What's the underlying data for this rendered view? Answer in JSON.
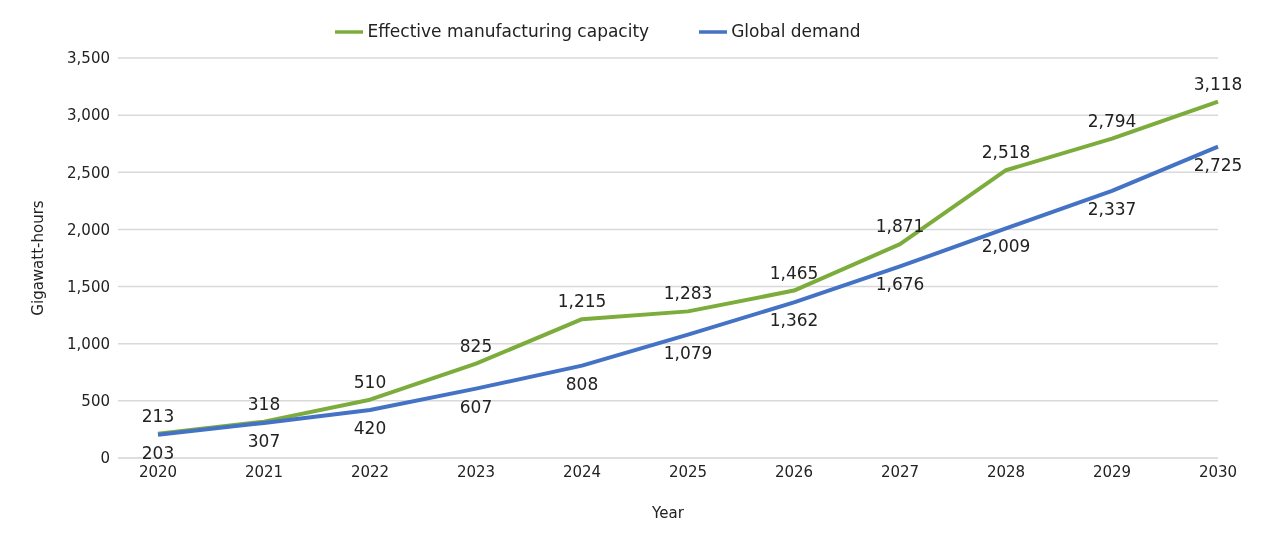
{
  "chart_data": {
    "type": "line",
    "xlabel": "Year",
    "ylabel": "Gigawatt-hours",
    "categories": [
      "2020",
      "2021",
      "2022",
      "2023",
      "2024",
      "2025",
      "2026",
      "2027",
      "2028",
      "2029",
      "2030"
    ],
    "series": [
      {
        "name": "Effective manufacturing capacity",
        "color": "#7cac3c",
        "values": [
          213,
          318,
          510,
          825,
          1215,
          1283,
          1465,
          1871,
          2518,
          2794,
          3118
        ],
        "value_labels": [
          "213",
          "318",
          "510",
          "825",
          "1,215",
          "1,283",
          "1,465",
          "1,871",
          "2,518",
          "2,794",
          "3,118"
        ]
      },
      {
        "name": "Global demand",
        "color": "#4472c4",
        "values": [
          203,
          307,
          420,
          607,
          808,
          1079,
          1362,
          1676,
          2009,
          2337,
          2725
        ],
        "value_labels": [
          "203",
          "307",
          "420",
          "607",
          "808",
          "1,079",
          "1,362",
          "1,676",
          "2,009",
          "2,337",
          "2,725"
        ]
      }
    ],
    "ylim": [
      0,
      3500
    ],
    "yticks": [
      0,
      500,
      {
        "value": 1000,
        "label": "1,000"
      },
      {
        "value": 1500,
        "label": "1,500"
      },
      {
        "value": 2000,
        "label": "2,000"
      },
      {
        "value": 2500,
        "label": "2,500"
      },
      {
        "value": 3000,
        "label": "3,000"
      },
      {
        "value": 3500,
        "label": "3,500"
      }
    ],
    "grid": "y",
    "legend": "top",
    "marker": "none",
    "line_style": "solid"
  }
}
